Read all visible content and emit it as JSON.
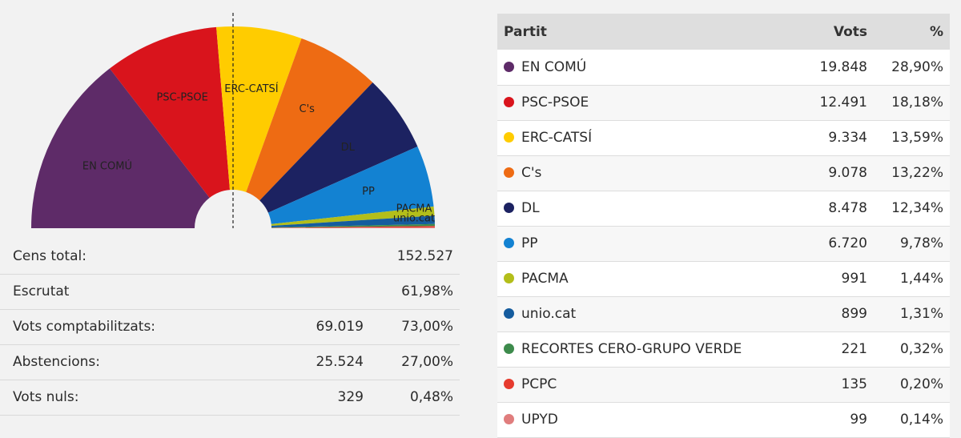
{
  "chart_data": {
    "type": "pie",
    "subtype": "semicircle-donut",
    "title": "",
    "categories": [
      "EN COMÚ",
      "PSC-PSOE",
      "ERC-CATSÍ",
      "C's",
      "DL",
      "PP",
      "PACMA",
      "unio.cat",
      "RECORTES CERO-GRUPO VERDE",
      "PCPC",
      "UPYD"
    ],
    "values": [
      28.9,
      18.18,
      13.59,
      13.22,
      12.34,
      9.78,
      1.44,
      1.31,
      0.32,
      0.2,
      0.14
    ],
    "colors": [
      "#5e2b68",
      "#d9141c",
      "#ffcc00",
      "#ee6b13",
      "#1c2261",
      "#1382d2",
      "#b3be1a",
      "#155c9e",
      "#3d8b4c",
      "#e63b2e",
      "#e07d7d"
    ],
    "labels": [
      "EN COMÚ",
      "PSC-PSOE",
      "ERC-CATSÍ",
      "C's",
      "DL",
      "PP",
      "PACMA",
      "unio.cat"
    ],
    "legend": "none",
    "majority_line": "vertical dashed line at 50%"
  },
  "summary": {
    "rows": [
      {
        "label": "Cens total:",
        "value1": "",
        "value2": "152.527"
      },
      {
        "label": "Escrutat",
        "value1": "",
        "value2": "61,98%"
      },
      {
        "label": "Vots comptabilitzats:",
        "value1": "69.019",
        "value2": "73,00%"
      },
      {
        "label": "Abstencions:",
        "value1": "25.524",
        "value2": "27,00%"
      },
      {
        "label": "Vots nuls:",
        "value1": "329",
        "value2": "0,48%"
      }
    ]
  },
  "table": {
    "headers": {
      "party": "Partit",
      "votes": "Vots",
      "pct": "%"
    },
    "rows": [
      {
        "name": "EN COMÚ",
        "votes": "19.848",
        "pct": "28,90%",
        "color": "#5e2b68"
      },
      {
        "name": "PSC-PSOE",
        "votes": "12.491",
        "pct": "18,18%",
        "color": "#d9141c"
      },
      {
        "name": "ERC-CATSÍ",
        "votes": "9.334",
        "pct": "13,59%",
        "color": "#ffcc00"
      },
      {
        "name": "C's",
        "votes": "9.078",
        "pct": "13,22%",
        "color": "#ee6b13"
      },
      {
        "name": "DL",
        "votes": "8.478",
        "pct": "12,34%",
        "color": "#1c2261"
      },
      {
        "name": "PP",
        "votes": "6.720",
        "pct": "9,78%",
        "color": "#1382d2"
      },
      {
        "name": "PACMA",
        "votes": "991",
        "pct": "1,44%",
        "color": "#b3be1a"
      },
      {
        "name": "unio.cat",
        "votes": "899",
        "pct": "1,31%",
        "color": "#155c9e"
      },
      {
        "name": "RECORTES CERO-GRUPO VERDE",
        "votes": "221",
        "pct": "0,32%",
        "color": "#3d8b4c"
      },
      {
        "name": "PCPC",
        "votes": "135",
        "pct": "0,20%",
        "color": "#e63b2e"
      },
      {
        "name": "UPYD",
        "votes": "99",
        "pct": "0,14%",
        "color": "#e07d7d"
      }
    ]
  }
}
